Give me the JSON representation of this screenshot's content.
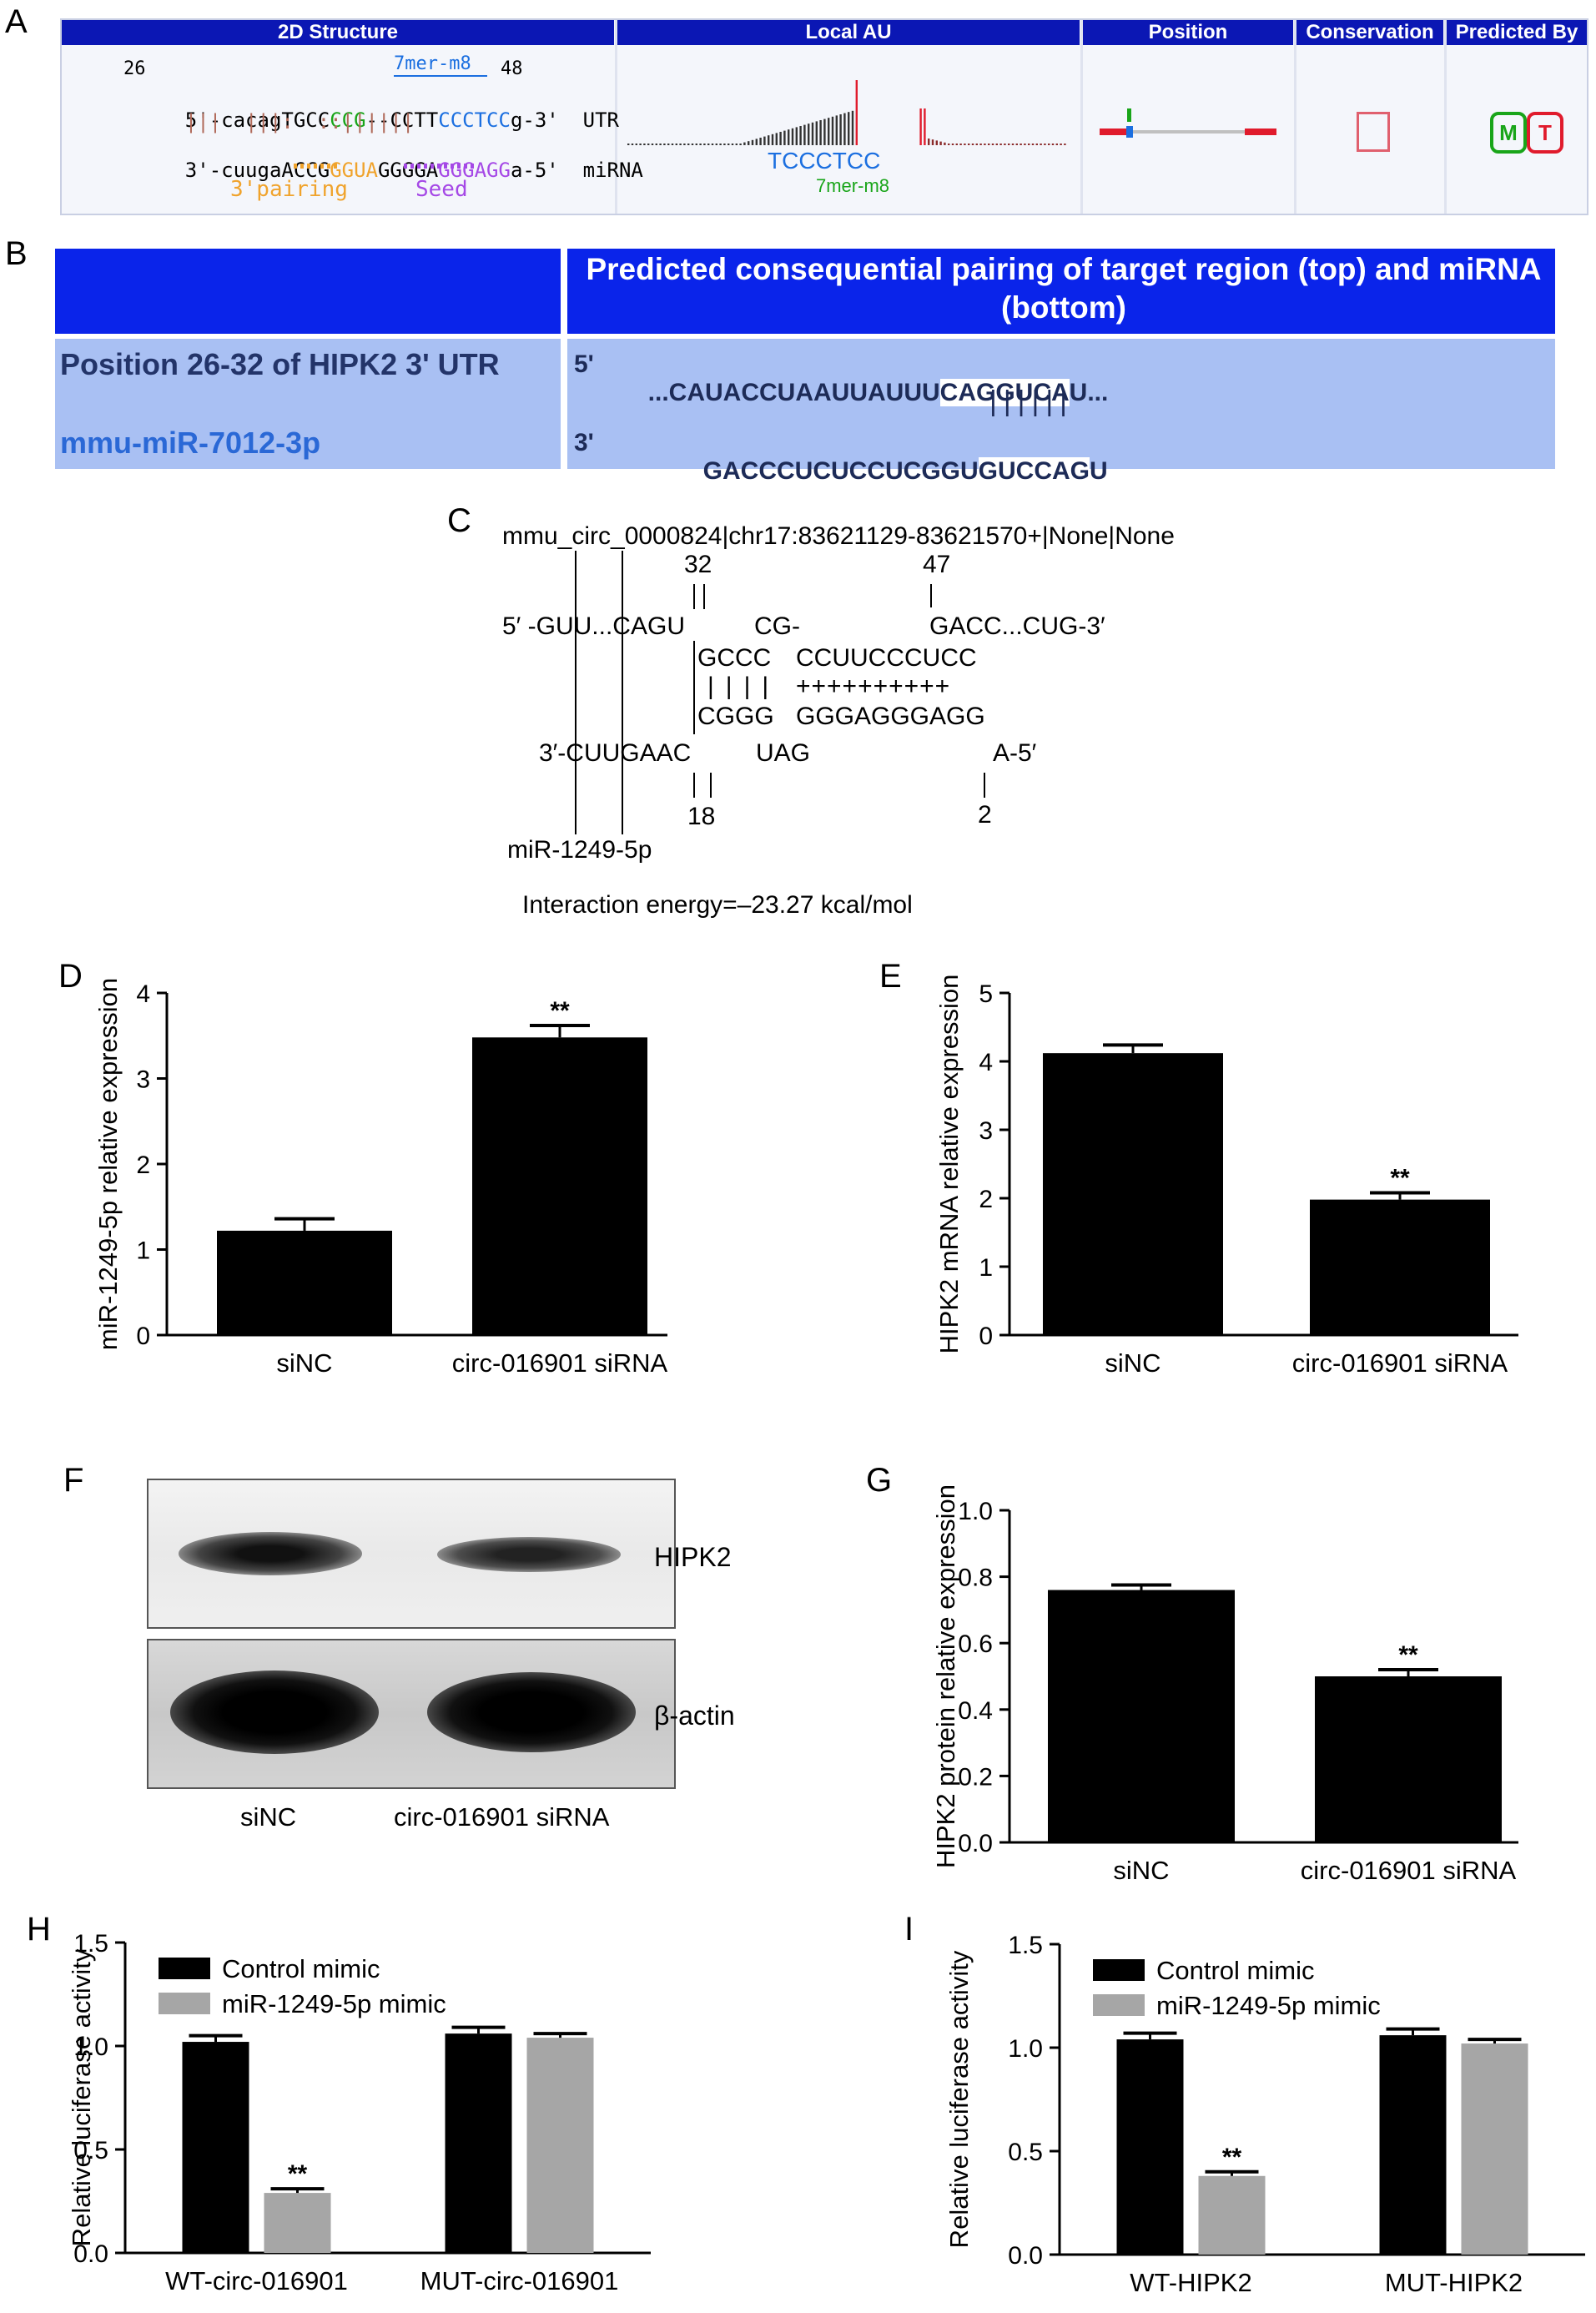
{
  "panel_letters": [
    "A",
    "B",
    "C",
    "D",
    "E",
    "F",
    "G",
    "H",
    "I"
  ],
  "panelA": {
    "headers": [
      "2D Structure",
      "Local AU",
      "Position",
      "Conservation",
      "Predicted By"
    ],
    "num_left": "26",
    "num_right": "48",
    "site_label": "7mer-m8",
    "utr_line_prefix": "5'-cacagTGCC",
    "utr_line_green": "CCG",
    "utr_line_mid": "--CCTT",
    "utr_line_blue": "CCCTCC",
    "utr_line_suffix": "g-3'  UTR",
    "pair_line": "    |||  |||:  ::||||||",
    "mirna_line_prefix": "3'-cuugaACCG",
    "mirna_line_orange": "GGUA",
    "mirna_line_mid": "GGGGA",
    "mirna_line_purple": "GGGAGG",
    "mirna_line_suffix": "a-5'  miRNA",
    "label_3pairing": "3'pairing",
    "label_seed": "Seed",
    "au_seq": "TCCCTCC",
    "au_site": "7mer-m8",
    "predicted_m": "M",
    "predicted_t": "T",
    "colors": {
      "header": "#0b17b4",
      "green": "#19a519",
      "blue": "#1b6fe0",
      "orange": "#f0a32c",
      "purple": "#a548e6",
      "red": "#e01b2c"
    }
  },
  "panelB": {
    "header": "Predicted consequential pairing of target region (top) and miRNA (bottom)",
    "position_label": "Position 26-32 of HIPK2 3' UTR",
    "mirna_name": "mmu-miR-7012-3p",
    "top_prime": "5'",
    "top_seq_a": "...CAUACCUAAUUAUUU",
    "top_seq_b": "CAGGUCA",
    "top_seq_c": "U...",
    "bottom_prime": "3'",
    "bottom_seq_a": "GACCCUCUCCUCGGU",
    "bottom_seq_b": "GUCCAG",
    "bottom_seq_c": "U",
    "pairs": "||||||"
  },
  "panelC": {
    "title": "mmu_circ_0000824|chr17:83621129-83621570+|None|None",
    "num_32": "32",
    "num_47": "47",
    "line_top_left": "5′ -GUU...CAGU",
    "line_top_mid": "CG-",
    "line_top_right": "GACC...CUG-3′",
    "line_gccc": "GCCC",
    "line_ccuu": "CCUUCCCUCC",
    "line_bars": "||||",
    "line_plus": "++++++++++",
    "line_cggg": "CGGG",
    "line_ggga": "GGGAGGGAGG",
    "line_bot_left": "3′-CUUGAAC",
    "line_bot_mid": "UAG",
    "line_bot_right": "A-5′",
    "num_18": "18",
    "num_2": "2",
    "mirna": "miR-1249-5p",
    "energy": "Interaction energy=–23.27 kcal/mol"
  },
  "panelF": {
    "labels": [
      "HIPK2",
      "β-actin"
    ],
    "lanes": [
      "siNC",
      "circ-016901 siRNA"
    ]
  },
  "chart_data": [
    {
      "id": "D",
      "type": "bar",
      "categories": [
        "siNC",
        "circ-016901 siRNA"
      ],
      "values": [
        1.22,
        3.48
      ],
      "errors": [
        0.14,
        0.14
      ],
      "significance": [
        "",
        "**"
      ],
      "ylabel": "miR-1249-5p relative expression",
      "ylim": [
        0,
        4
      ],
      "yticks": [
        0,
        1,
        2,
        3,
        4
      ]
    },
    {
      "id": "E",
      "type": "bar",
      "categories": [
        "siNC",
        "circ-016901 siRNA"
      ],
      "values": [
        4.12,
        1.98
      ],
      "errors": [
        0.12,
        0.1
      ],
      "significance": [
        "",
        "**"
      ],
      "ylabel": "HIPK2 mRNA relative expression",
      "ylim": [
        0,
        5
      ],
      "yticks": [
        0,
        1,
        2,
        3,
        4,
        5
      ]
    },
    {
      "id": "G",
      "type": "bar",
      "categories": [
        "siNC",
        "circ-016901 siRNA"
      ],
      "values": [
        0.76,
        0.5
      ],
      "errors": [
        0.015,
        0.02
      ],
      "significance": [
        "",
        "**"
      ],
      "ylabel": "HIPK2 protein relative expression",
      "ylim": [
        0,
        1.0
      ],
      "yticks": [
        "0.0",
        "0.2",
        "0.4",
        "0.6",
        "0.8",
        "1.0"
      ]
    },
    {
      "id": "H",
      "type": "bar",
      "categories": [
        "WT-circ-016901",
        "MUT-circ-016901"
      ],
      "series": [
        {
          "name": "Control mimic",
          "values": [
            1.02,
            1.06
          ],
          "errors": [
            0.03,
            0.03
          ],
          "significance": [
            "",
            ""
          ],
          "color": "#000000"
        },
        {
          "name": "miR-1249-5p mimic",
          "values": [
            0.29,
            1.04
          ],
          "errors": [
            0.02,
            0.02
          ],
          "significance": [
            "**",
            ""
          ],
          "color": "#a6a6a6"
        }
      ],
      "ylabel": "Relative luciferase activity",
      "ylim": [
        0,
        1.5
      ],
      "yticks": [
        "0.0",
        "0.5",
        "1.0",
        "1.5"
      ]
    },
    {
      "id": "I",
      "type": "bar",
      "categories": [
        "WT-HIPK2",
        "MUT-HIPK2"
      ],
      "series": [
        {
          "name": "Control mimic",
          "values": [
            1.04,
            1.06
          ],
          "errors": [
            0.03,
            0.03
          ],
          "significance": [
            "",
            ""
          ],
          "color": "#000000"
        },
        {
          "name": "miR-1249-5p mimic",
          "values": [
            0.38,
            1.02
          ],
          "errors": [
            0.02,
            0.02
          ],
          "significance": [
            "**",
            ""
          ],
          "color": "#a6a6a6"
        }
      ],
      "ylabel": "Relative luciferase activity",
      "ylim": [
        0,
        1.5
      ],
      "yticks": [
        "0.0",
        "0.5",
        "1.0",
        "1.5"
      ]
    }
  ]
}
